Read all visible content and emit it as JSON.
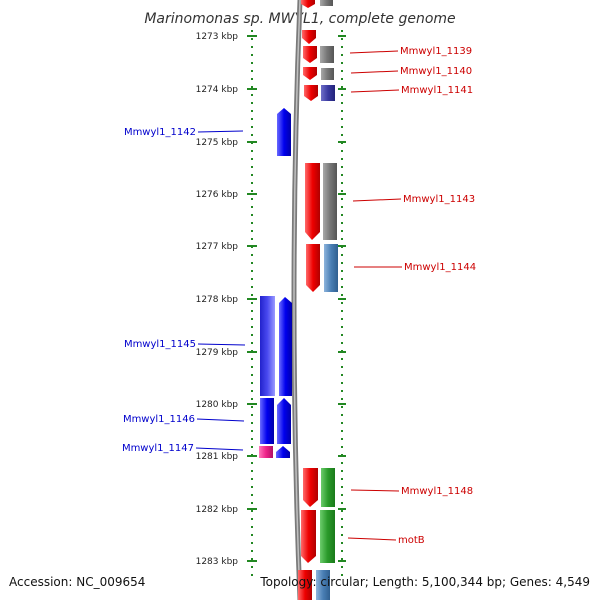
{
  "title": "Marinomonas sp. MWYL1, complete genome",
  "accession": "Accession: NC_009654",
  "summary": "Topology: circular; Length: 5,100,344 bp; Genes: 4,549",
  "scale": {
    "ticks": [
      "1273 kbp",
      "1274 kbp",
      "1275 kbp",
      "1276 kbp",
      "1277 kbp",
      "1278 kbp",
      "1279 kbp",
      "1280 kbp",
      "1281 kbp",
      "1282 kbp",
      "1283 kbp"
    ]
  },
  "colors": {
    "forward_cds": "#ee0000",
    "reverse_cds": "#0000ee",
    "cog_gray": "#777777",
    "cog_purple": "#3a3aa0",
    "cog_steel": "#4a7fb5",
    "cog_green": "#2a9a2a",
    "cog_indigo": "#3a3ae0",
    "cog_magenta": "#ee2288",
    "backbone": "#888888",
    "scale_dots": "#228822"
  },
  "labels_left": [
    {
      "name": "Mmwyl1_1142"
    },
    {
      "name": "Mmwyl1_1145"
    },
    {
      "name": "Mmwyl1_1146"
    },
    {
      "name": "Mmwyl1_1147"
    }
  ],
  "labels_right": [
    {
      "name": "Mmwyl1_1139"
    },
    {
      "name": "Mmwyl1_1140"
    },
    {
      "name": "Mmwyl1_1141"
    },
    {
      "name": "Mmwyl1_1143"
    },
    {
      "name": "Mmwyl1_1144"
    },
    {
      "name": "Mmwyl1_1148"
    },
    {
      "name": "motB"
    }
  ]
}
